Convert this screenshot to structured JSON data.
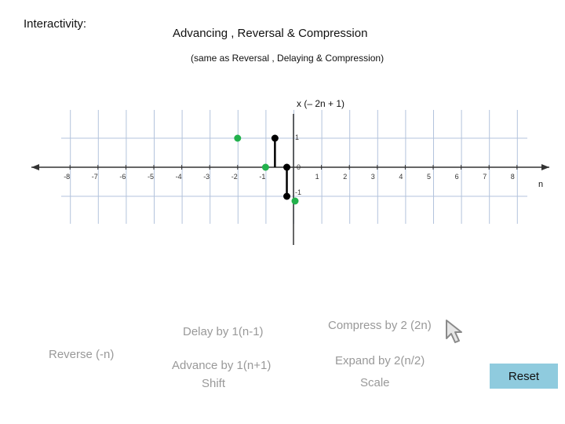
{
  "heading": "Interactivity:",
  "title": "Advancing , Reversal & Compression",
  "subtitle": "(same as Reversal , Delaying & Compression)",
  "chart_data": {
    "type": "scatter",
    "title": "x (– 2n + 1)",
    "xlabel": "n",
    "x_ticks": [
      "-8",
      "-7",
      "-6",
      "-5",
      "-4",
      "-3",
      "-2",
      "-1",
      "0",
      "1",
      "2",
      "3",
      "4",
      "5",
      "6",
      "7",
      "8"
    ],
    "y_ticks": [
      "1",
      "-1"
    ],
    "xlim": [
      -8,
      8
    ],
    "ylim": [
      -1,
      1
    ],
    "series": [
      {
        "color": "#000000",
        "stems": [
          [
            -1,
            1
          ],
          [
            0,
            0
          ],
          [
            0,
            -1
          ]
        ]
      },
      {
        "color": "#22b14c",
        "points": [
          [
            -2,
            1
          ],
          [
            -1,
            0
          ],
          [
            0,
            -1
          ]
        ]
      }
    ]
  },
  "controls": {
    "reverse": "Reverse (-n)",
    "delay": "Delay by 1(n-1)",
    "advance": "Advance by 1(n+1)",
    "shift": "Shift",
    "compress": "Compress by 2 (2n)",
    "expand": "Expand by 2(n/2)",
    "scale": "Scale",
    "reset": "Reset"
  },
  "cursor_icon": "arrow-cursor-icon"
}
